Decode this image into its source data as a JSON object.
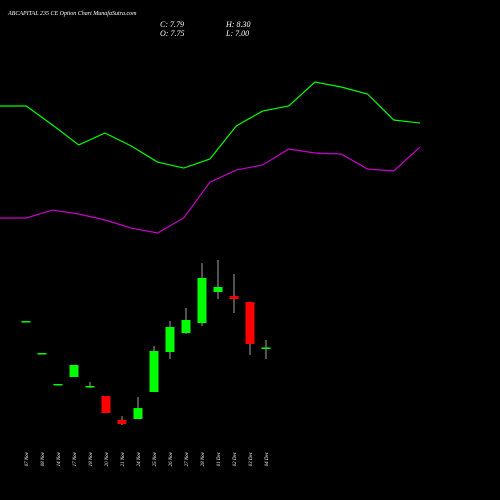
{
  "chart_data": [
    {
      "type": "candlestick",
      "title": "ABCAPITAL 235 CE Option Chart MunafaSutra.com",
      "quote": {
        "close": "C: 7.79",
        "high": "H: 8.30",
        "open": "O: 7.75",
        "low": "L: 7.00"
      },
      "categories": [
        "07 Nov",
        "08 Nov",
        "14 Nov",
        "17 Nov",
        "18 Nov",
        "20 Nov",
        "21 Nov",
        "24 Nov",
        "25 Nov",
        "26 Nov",
        "27 Nov",
        "28 Nov",
        "01 Dec",
        "02 Dec",
        "03 Dec",
        "04 Dec"
      ],
      "open": [
        9.6,
        7.41,
        5.29,
        5.77,
        5.12,
        4.46,
        2.82,
        2.89,
        4.74,
        7.48,
        8.78,
        9.46,
        11.59,
        11.31,
        10.9,
        7.75
      ],
      "high": [
        9.6,
        7.41,
        5.29,
        6.59,
        5.42,
        4.46,
        3.09,
        4.4,
        7.89,
        9.6,
        10.49,
        13.57,
        13.78,
        12.82,
        10.9,
        8.3
      ],
      "low": [
        9.6,
        7.41,
        5.29,
        5.77,
        5.01,
        3.3,
        2.48,
        2.89,
        4.74,
        7.0,
        8.71,
        9.26,
        11.11,
        10.15,
        7.27,
        7.0
      ],
      "close": [
        9.6,
        7.41,
        5.29,
        6.59,
        5.15,
        3.3,
        2.55,
        3.64,
        7.55,
        9.19,
        9.67,
        12.55,
        11.93,
        11.11,
        8.03,
        7.79
      ],
      "up_color": "#00ff00",
      "down_color": "#ff0000",
      "ylim": [
        2,
        27
      ]
    },
    {
      "type": "line",
      "x": [
        0,
        1,
        2,
        3,
        4,
        5,
        6,
        7,
        8,
        9,
        10,
        11,
        12,
        13,
        14,
        15,
        16
      ],
      "xlim": [
        0,
        16
      ],
      "series": [
        {
          "color": "#00ff00",
          "values": [
            24.33,
            24.33,
            23.03,
            21.66,
            22.48,
            21.59,
            20.49,
            20.08,
            20.7,
            22.96,
            23.98,
            24.33,
            25.97,
            25.63,
            25.15,
            23.37,
            23.16
          ]
        },
        {
          "color": "#cc00cc",
          "values": [
            16.66,
            16.66,
            17.2,
            16.93,
            16.52,
            15.97,
            15.63,
            16.66,
            19.12,
            19.94,
            20.29,
            21.38,
            21.11,
            21.04,
            20.01,
            19.88,
            21.52
          ]
        }
      ],
      "ylim": [
        2,
        27
      ]
    }
  ]
}
